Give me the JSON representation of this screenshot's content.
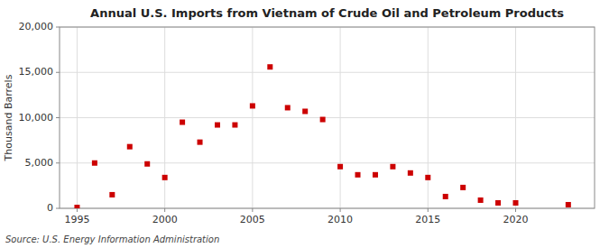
{
  "chart_data": {
    "type": "scatter",
    "title": "Annual U.S. Imports from Vietnam of Crude Oil and Petroleum Products",
    "y_label": "Thousand Barrels",
    "source": "Source: U.S. Energy Information Administration",
    "x": [
      1995,
      1996,
      1997,
      1998,
      1999,
      2000,
      2001,
      2002,
      2003,
      2004,
      2005,
      2006,
      2007,
      2008,
      2009,
      2010,
      2011,
      2012,
      2013,
      2014,
      2015,
      2016,
      2017,
      2018,
      2019,
      2020,
      2023
    ],
    "values": [
      100,
      5000,
      1500,
      6800,
      4900,
      3400,
      9500,
      7300,
      9200,
      9200,
      11300,
      15600,
      11100,
      10700,
      9800,
      4600,
      3700,
      3700,
      4600,
      3900,
      3400,
      1300,
      2300,
      900,
      600,
      600,
      400
    ],
    "color": "#cc0000",
    "marker": "square",
    "xlim": [
      1994.0,
      2024.5
    ],
    "ylim": [
      0,
      20000
    ],
    "xticks": [
      1995,
      2000,
      2005,
      2010,
      2015,
      2020
    ],
    "yticks": [
      0,
      {
        "value": 5000,
        "label": "5,000"
      },
      {
        "value": 10000,
        "label": "10,000"
      },
      {
        "value": 15000,
        "label": "15,000"
      },
      {
        "value": 20000,
        "label": "20,000"
      }
    ],
    "grid": true
  }
}
